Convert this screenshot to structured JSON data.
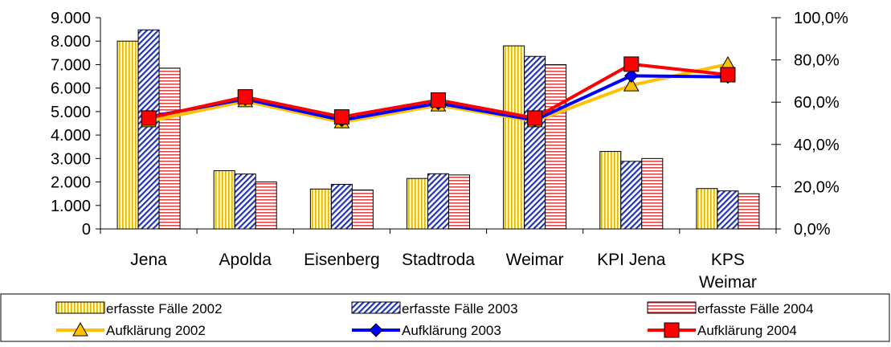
{
  "chart_data": {
    "type": "bar",
    "categories": [
      "Jena",
      "Apolda",
      "Eisenberg",
      "Stadtroda",
      "Weimar",
      "KPI Jena",
      "KPS Weimar"
    ],
    "category_lines": [
      [
        "Jena"
      ],
      [
        "Apolda"
      ],
      [
        "Eisenberg"
      ],
      [
        "Stadtroda"
      ],
      [
        "Weimar"
      ],
      [
        "KPI Jena"
      ],
      [
        "KPS",
        "Weimar"
      ]
    ],
    "bar_series": [
      {
        "name": "erfasste Fälle 2002",
        "values": [
          8000,
          2480,
          1700,
          2150,
          7800,
          3300,
          1720
        ],
        "color": "#FFF2A8",
        "pattern": "vertical-stripes"
      },
      {
        "name": "erfasste Fälle 2003",
        "values": [
          8480,
          2340,
          1900,
          2350,
          7350,
          2880,
          1620
        ],
        "color": "#3333CC",
        "pattern": "diagonal-hatch"
      },
      {
        "name": "erfasste Fälle 2004",
        "values": [
          6850,
          2000,
          1660,
          2300,
          7000,
          3000,
          1500
        ],
        "color": "#D9534F",
        "pattern": "horizontal-stripes"
      }
    ],
    "line_series": [
      {
        "name": "Aufklärung 2002",
        "values": [
          51.0,
          60.5,
          50.5,
          58.5,
          51.0,
          68.0,
          78.0
        ],
        "color": "#FFC000",
        "marker": "triangle"
      },
      {
        "name": "Aufklärung 2003",
        "values": [
          53.0,
          61.5,
          51.5,
          59.5,
          51.5,
          72.5,
          72.0
        ],
        "color": "#0000FF",
        "marker": "diamond"
      },
      {
        "name": "Aufklärung 2004",
        "values": [
          52.5,
          62.5,
          53.0,
          61.0,
          52.5,
          78.0,
          73.0
        ],
        "color": "#FF0000",
        "marker": "square"
      }
    ],
    "y_left": {
      "min": 0,
      "max": 9000,
      "ticks": [
        "0",
        "1.000",
        "2.000",
        "3.000",
        "4.000",
        "5.000",
        "6.000",
        "7.000",
        "8.000",
        "9.000"
      ]
    },
    "y_right": {
      "min": 0,
      "max": 100,
      "ticks": [
        "0,0%",
        "20,0%",
        "40,0%",
        "60,0%",
        "80,0%",
        "100,0%"
      ]
    },
    "grid": false,
    "legend_position": "bottom"
  }
}
